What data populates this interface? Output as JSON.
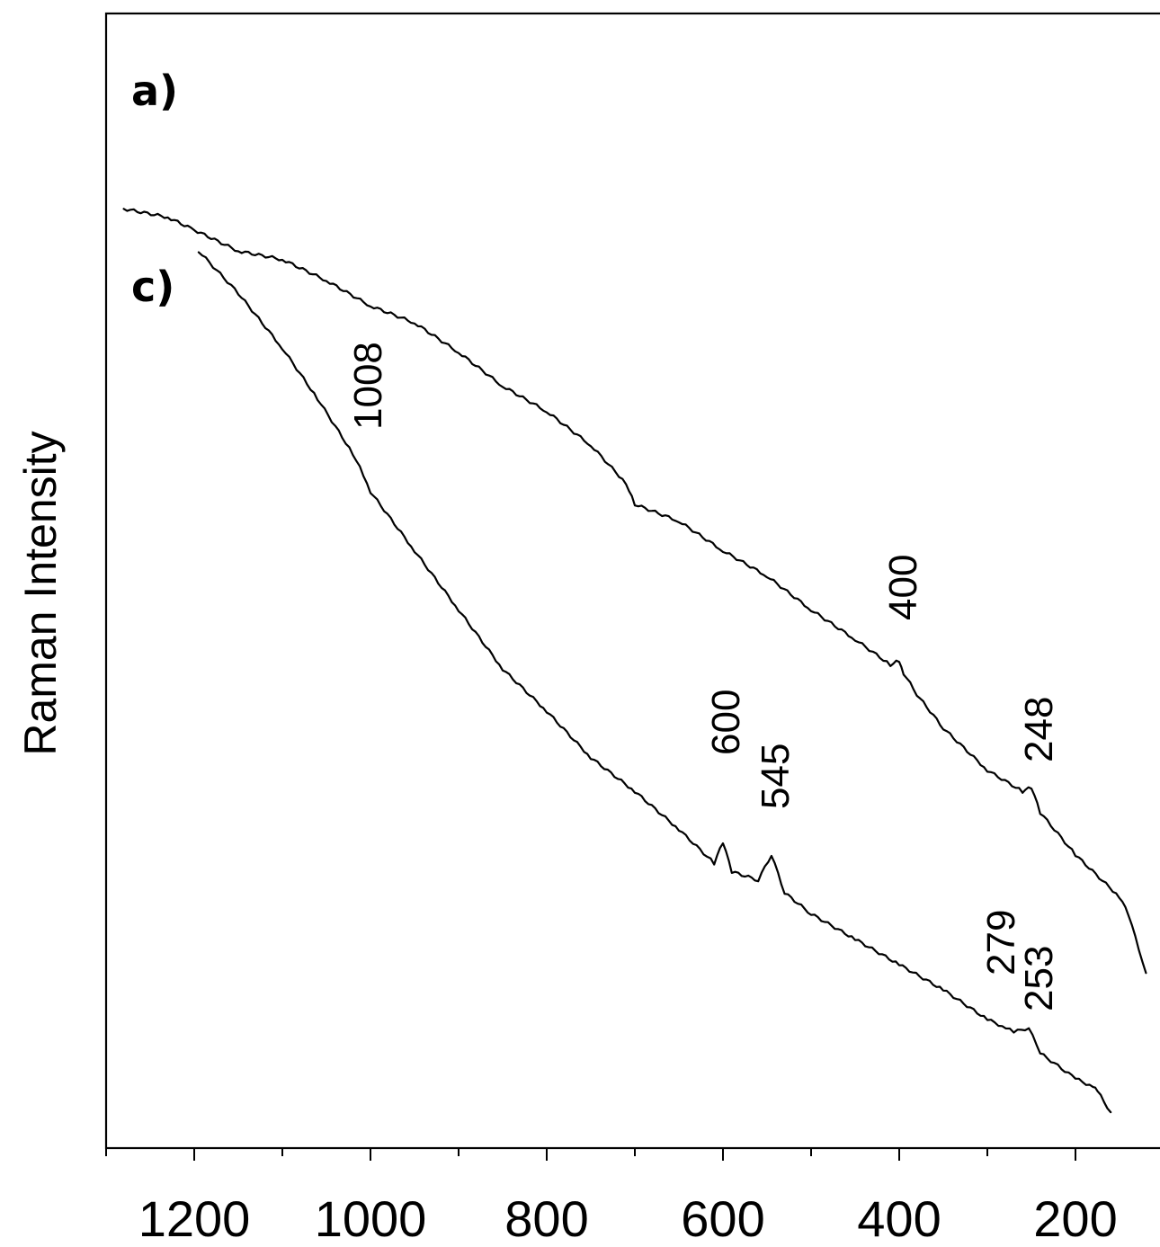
{
  "chart_data": {
    "type": "line",
    "title": "",
    "xlabel": "",
    "ylabel": "Raman Intensity",
    "x_reversed": true,
    "xlim": [
      1300,
      100
    ],
    "x_ticks": [
      "1200",
      "1000",
      "800",
      "600",
      "400",
      "200"
    ],
    "y_ticks_shown": false,
    "grid": false,
    "series": [
      {
        "name": "a)",
        "x": [
          1280,
          1230,
          1200,
          1150,
          1100,
          1050,
          1000,
          950,
          900,
          850,
          800,
          750,
          710,
          700,
          650,
          600,
          550,
          500,
          450,
          410,
          400,
          395,
          380,
          350,
          300,
          260,
          250,
          240,
          200,
          150,
          140,
          120
        ],
        "values": [
          0.955,
          0.945,
          0.93,
          0.905,
          0.895,
          0.87,
          0.84,
          0.82,
          0.785,
          0.745,
          0.715,
          0.675,
          0.63,
          0.605,
          0.585,
          0.55,
          0.52,
          0.48,
          0.445,
          0.415,
          0.42,
          0.405,
          0.38,
          0.34,
          0.29,
          0.265,
          0.27,
          0.24,
          0.19,
          0.14,
          0.12,
          0.05
        ]
      },
      {
        "name": "c)",
        "x": [
          1195,
          1150,
          1100,
          1060,
          1020,
          1008,
          1000,
          950,
          900,
          850,
          800,
          750,
          700,
          650,
          610,
          600,
          590,
          560,
          545,
          530,
          500,
          450,
          400,
          350,
          300,
          279,
          270,
          253,
          240,
          200,
          180,
          175,
          160
        ],
        "values": [
          0.905,
          0.855,
          0.79,
          0.73,
          0.665,
          0.64,
          0.62,
          0.55,
          0.48,
          0.41,
          0.36,
          0.305,
          0.265,
          0.22,
          0.18,
          0.205,
          0.17,
          0.16,
          0.19,
          0.145,
          0.12,
          0.09,
          0.06,
          0.03,
          -0.005,
          -0.015,
          -0.02,
          -0.015,
          -0.045,
          -0.075,
          -0.085,
          -0.09,
          -0.115
        ]
      }
    ],
    "peak_annotations": [
      {
        "label": "1008",
        "series": "c)"
      },
      {
        "label": "400",
        "series": "a)"
      },
      {
        "label": "248",
        "series": "a)"
      },
      {
        "label": "600",
        "series": "c)"
      },
      {
        "label": "545",
        "series": "c)"
      },
      {
        "label": "279",
        "series": "c)"
      },
      {
        "label": "253",
        "series": "c)"
      }
    ]
  }
}
